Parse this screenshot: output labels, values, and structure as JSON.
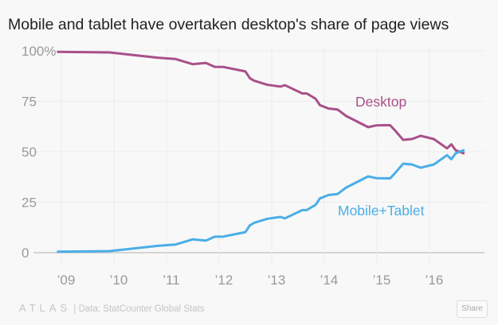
{
  "chart_data": {
    "type": "line",
    "title": "Mobile and tablet have overtaken desktop's share of page views",
    "xlabel": "",
    "ylabel": "",
    "ylim": [
      0,
      100
    ],
    "y_ticks": [
      "0",
      "25",
      "50",
      "75",
      "100%"
    ],
    "y_tick_values": [
      0,
      25,
      50,
      75,
      100
    ],
    "x_ticks": [
      "’09",
      "’10",
      "’11",
      "’12",
      "’13",
      "’14",
      "’15",
      "’16"
    ],
    "x_tick_dates": [
      "2009-01",
      "2010-01",
      "2011-01",
      "2012-01",
      "2013-01",
      "2014-01",
      "2015-01",
      "2016-01"
    ],
    "grid": true,
    "x": [
      "2008-12",
      "2009-12",
      "2010-11",
      "2011-03",
      "2011-07",
      "2011-10",
      "2011-12",
      "2012-02",
      "2012-07",
      "2012-08",
      "2012-09",
      "2012-12",
      "2013-03",
      "2013-04",
      "2013-08",
      "2013-09",
      "2013-11",
      "2013-12",
      "2014-02",
      "2014-04",
      "2014-06",
      "2014-11",
      "2015-01",
      "2015-04",
      "2015-05",
      "2015-07",
      "2015-09",
      "2015-11",
      "2016-02",
      "2016-05",
      "2016-06",
      "2016-07",
      "2016-09"
    ],
    "series": [
      {
        "name": "Desktop",
        "color": "#a8508a",
        "values": [
          99.5,
          99.2,
          96.6,
          96.0,
          93.4,
          94.0,
          92.1,
          92.0,
          89.8,
          86.5,
          85.2,
          83.2,
          82.3,
          83.0,
          78.9,
          78.9,
          76.3,
          73.1,
          71.4,
          71.0,
          67.7,
          62.2,
          63.1,
          63.2,
          60.9,
          55.9,
          56.3,
          57.9,
          56.3,
          51.7,
          53.7,
          50.7,
          49.1
        ]
      },
      {
        "name": "Mobile+Tablet",
        "color": "#4aaee6",
        "values": [
          0.5,
          0.8,
          3.4,
          4.0,
          6.6,
          6.0,
          7.9,
          8.0,
          10.2,
          13.5,
          14.8,
          16.8,
          17.7,
          17.0,
          21.1,
          21.1,
          23.7,
          26.9,
          28.6,
          29.0,
          32.3,
          37.8,
          36.9,
          36.8,
          39.1,
          44.1,
          43.7,
          42.1,
          43.7,
          48.3,
          46.3,
          49.3,
          50.9
        ]
      }
    ]
  },
  "footer": {
    "logo": "ATLAS",
    "separator": "|",
    "source": "Data: StatCounter Global Stats",
    "share_label": "Share"
  }
}
